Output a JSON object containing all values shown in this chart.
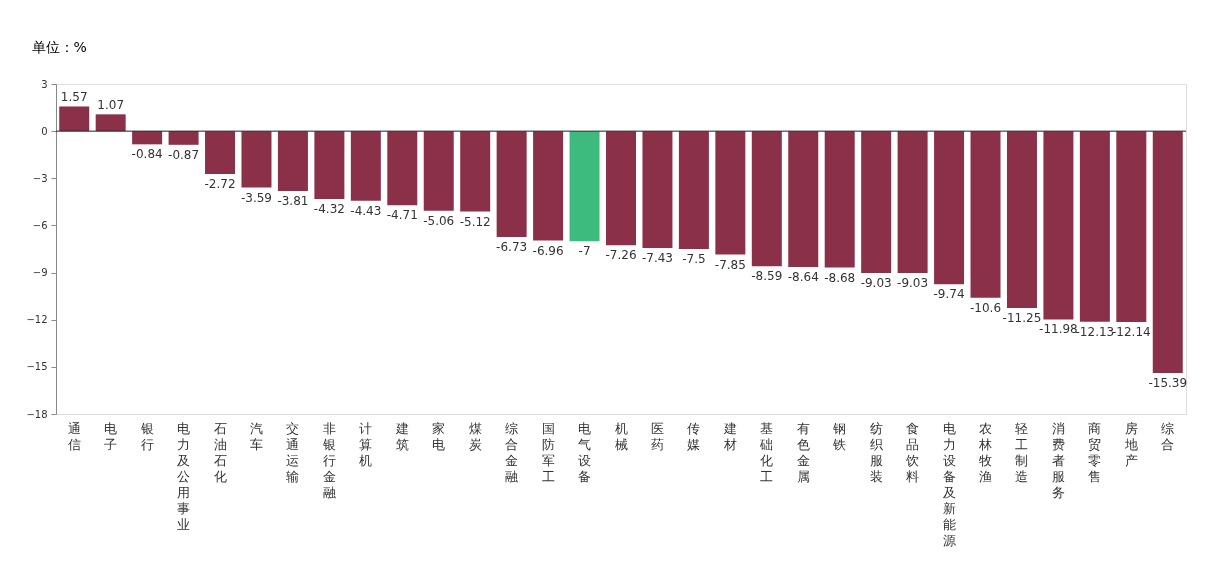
{
  "chart_data": {
    "type": "bar",
    "ylabel": "单位：%",
    "categories": [
      "通信",
      "电子",
      "银行",
      "电力及公用事业",
      "石油石化",
      "汽车",
      "交通运输",
      "非银行金融",
      "计算机",
      "建筑",
      "家电",
      "煤炭",
      "综合金融",
      "国防军工",
      "电气设备",
      "机械",
      "医药",
      "传媒",
      "建材",
      "基础化工",
      "有色金属",
      "钢铁",
      "纺织服装",
      "食品饮料",
      "电力设备及新能源",
      "农林牧渔",
      "轻工制造",
      "消费者服务",
      "商贸零售",
      "房地产",
      "综合"
    ],
    "values": [
      1.57,
      1.07,
      -0.84,
      -0.87,
      -2.72,
      -3.59,
      -3.81,
      -4.32,
      -4.43,
      -4.71,
      -5.06,
      -5.12,
      -6.73,
      -6.96,
      -7,
      -7.26,
      -7.43,
      -7.5,
      -7.85,
      -8.59,
      -8.64,
      -8.68,
      -9.03,
      -9.03,
      -9.74,
      -10.6,
      -11.25,
      -11.98,
      -12.13,
      -12.14,
      -15.39
    ],
    "colors": [
      "#8b3049",
      "#8b3049",
      "#8b3049",
      "#8b3049",
      "#8b3049",
      "#8b3049",
      "#8b3049",
      "#8b3049",
      "#8b3049",
      "#8b3049",
      "#8b3049",
      "#8b3049",
      "#8b3049",
      "#8b3049",
      "#3dbb7f",
      "#8b3049",
      "#8b3049",
      "#8b3049",
      "#8b3049",
      "#8b3049",
      "#8b3049",
      "#8b3049",
      "#8b3049",
      "#8b3049",
      "#8b3049",
      "#8b3049",
      "#8b3049",
      "#8b3049",
      "#8b3049",
      "#8b3049",
      "#8b3049"
    ],
    "ylim": [
      -18,
      3
    ],
    "yticks": [
      -18,
      -15,
      -12,
      -9,
      -6,
      -3,
      0,
      3
    ],
    "ref_lines": [
      {
        "axis": "y",
        "value": 0,
        "color": "#222222"
      }
    ],
    "data_labels": true,
    "grid": false
  }
}
